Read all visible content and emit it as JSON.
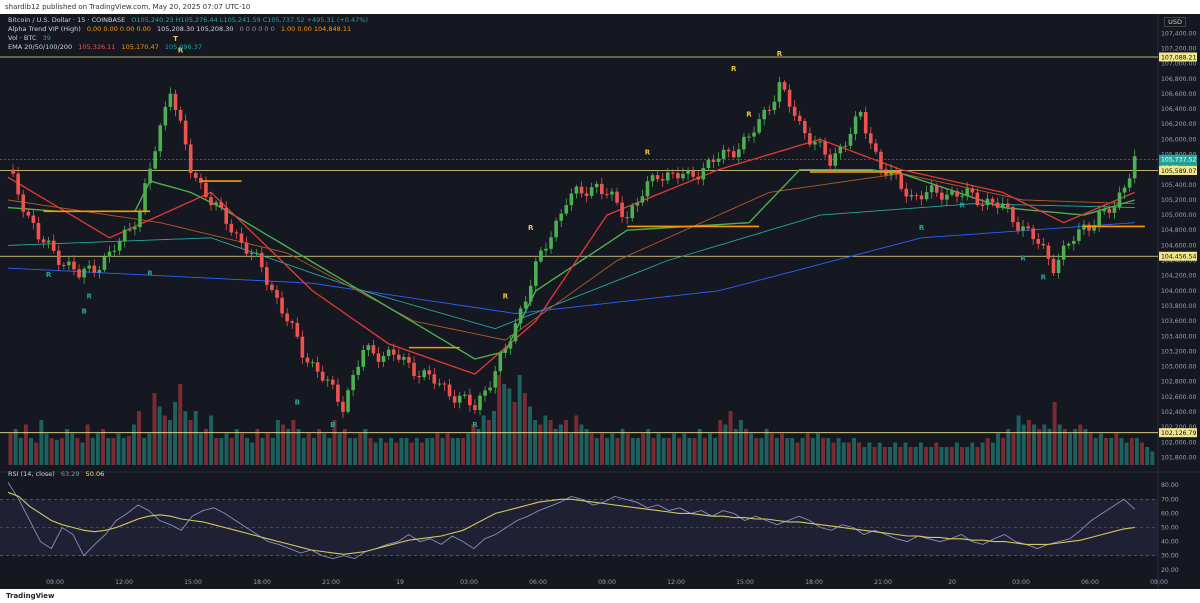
{
  "header": {
    "attribution": "shardib12 published on TradingView.com, May 20, 2025 07:07 UTC-10",
    "brand": "TradingView",
    "currency": "USD"
  },
  "legend": {
    "symbol": "Bitcoin / U.S. Dollar · 15 · COINBASE",
    "ohlc": "O105,240.23 H105,276.44 L105,241.59 C105,737.52 +495.31 (+0.47%)",
    "alpha_trend_name": "Alpha Trend VIP (High)",
    "alpha_trend_values_a": "0.00 0.00 0.00 0.00",
    "alpha_trend_values_b": "105,208.30 105,208.30",
    "alpha_trend_values_c": "0 0 0 0 0 0",
    "alpha_trend_values_d": "1.00 0.00 104,848.11",
    "vol_name": "Vol · BTC",
    "vol_value": "39",
    "ema_name": "EMA 20/50/100/200",
    "ema_v1": "105,326.11",
    "ema_v2": "105,170.47",
    "ema_v3": "105,096.37",
    "rsi_name": "RSI (14, close)",
    "rsi_v1": "63.29",
    "rsi_v2": "50.06"
  },
  "colors": {
    "up": "#26a69a",
    "up_candle": "#4caf50",
    "down": "#ef5350",
    "ema_fast": "#e53935",
    "ema_mid": "#b45a28",
    "ema_slow": "#26a69a",
    "ema_200": "#2962ff",
    "alpha_trend": "#4caf50",
    "level_line": "#f0e68c",
    "support_orange": "#ff9800",
    "rsi_line": "#8c8fbf",
    "rsi_ma": "#d4c95b",
    "background": "#151821"
  },
  "chart_data": [
    {
      "type": "candlestick",
      "title": "Bitcoin / U.S. Dollar · 15 · COINBASE",
      "x_ticks": [
        "09:00",
        "12:00",
        "15:00",
        "18:00",
        "21:00",
        "19",
        "03:00",
        "06:00",
        "09:00",
        "12:00",
        "15:00",
        "18:00",
        "21:00",
        "20",
        "03:00",
        "06:00",
        "09:00"
      ],
      "y_ticks": [
        "107,400.00",
        "107,200.00",
        "107,000.00",
        "106,800.00",
        "106,600.00",
        "106,400.00",
        "106,200.00",
        "106,000.00",
        "105,800.00",
        "105,600.00",
        "105,400.00",
        "105,200.00",
        "105,000.00",
        "104,800.00",
        "104,600.00",
        "104,400.00",
        "104,200.00",
        "104,000.00",
        "103,800.00",
        "103,600.00",
        "103,400.00",
        "103,200.00",
        "103,000.00",
        "102,800.00",
        "102,600.00",
        "102,400.00",
        "102,200.00",
        "102,000.00",
        "101,800.00"
      ],
      "ylim": [
        101700,
        107550
      ],
      "price_labels": [
        {
          "value": 107088.21,
          "text": "107,088.21",
          "color": "#f0e68c",
          "kind": "level"
        },
        {
          "value": 105737.52,
          "text": "105,737.52",
          "color": "#26a69a",
          "kind": "last"
        },
        {
          "value": 105589.07,
          "text": "105,589.07",
          "color": "#f0e68c",
          "kind": "level"
        },
        {
          "value": 104456.54,
          "text": "104,456.54",
          "color": "#f0e68c",
          "kind": "level"
        },
        {
          "value": 102126.79,
          "text": "102,126.79",
          "color": "#f0e68c",
          "kind": "level"
        }
      ],
      "last_timer": "02:33",
      "series_close": [
        {
          "t": 0,
          "close": 105600
        },
        {
          "t": 6,
          "close": 104700
        },
        {
          "t": 14,
          "close": 104200
        },
        {
          "t": 20,
          "close": 104450
        },
        {
          "t": 26,
          "close": 105050
        },
        {
          "t": 32,
          "close": 106700
        },
        {
          "t": 36,
          "close": 105600
        },
        {
          "t": 42,
          "close": 105000
        },
        {
          "t": 50,
          "close": 104300
        },
        {
          "t": 58,
          "close": 103200
        },
        {
          "t": 66,
          "close": 102500
        },
        {
          "t": 70,
          "close": 103200
        },
        {
          "t": 76,
          "close": 103150
        },
        {
          "t": 84,
          "close": 102800
        },
        {
          "t": 92,
          "close": 102450
        },
        {
          "t": 98,
          "close": 103200
        },
        {
          "t": 104,
          "close": 104300
        },
        {
          "t": 110,
          "close": 105200
        },
        {
          "t": 116,
          "close": 105400
        },
        {
          "t": 122,
          "close": 105000
        },
        {
          "t": 128,
          "close": 105550
        },
        {
          "t": 134,
          "close": 105500
        },
        {
          "t": 140,
          "close": 105750
        },
        {
          "t": 146,
          "close": 106000
        },
        {
          "t": 152,
          "close": 106700
        },
        {
          "t": 156,
          "close": 106200
        },
        {
          "t": 162,
          "close": 105700
        },
        {
          "t": 168,
          "close": 106300
        },
        {
          "t": 172,
          "close": 105650
        },
        {
          "t": 178,
          "close": 105250
        },
        {
          "t": 184,
          "close": 105300
        },
        {
          "t": 190,
          "close": 105250
        },
        {
          "t": 196,
          "close": 105100
        },
        {
          "t": 202,
          "close": 104700
        },
        {
          "t": 206,
          "close": 104350
        },
        {
          "t": 212,
          "close": 104850
        },
        {
          "t": 218,
          "close": 105100
        },
        {
          "t": 222,
          "close": 105737
        }
      ],
      "ema20": [
        {
          "t": 0,
          "v": 105500
        },
        {
          "t": 20,
          "v": 104700
        },
        {
          "t": 40,
          "v": 105300
        },
        {
          "t": 60,
          "v": 104000
        },
        {
          "t": 75,
          "v": 103300
        },
        {
          "t": 92,
          "v": 102900
        },
        {
          "t": 104,
          "v": 103600
        },
        {
          "t": 118,
          "v": 105000
        },
        {
          "t": 140,
          "v": 105600
        },
        {
          "t": 160,
          "v": 106000
        },
        {
          "t": 176,
          "v": 105600
        },
        {
          "t": 196,
          "v": 105300
        },
        {
          "t": 208,
          "v": 104900
        },
        {
          "t": 222,
          "v": 105300
        }
      ],
      "ema50": [
        {
          "t": 0,
          "v": 105200
        },
        {
          "t": 30,
          "v": 104900
        },
        {
          "t": 55,
          "v": 104500
        },
        {
          "t": 80,
          "v": 103600
        },
        {
          "t": 98,
          "v": 103350
        },
        {
          "t": 120,
          "v": 104400
        },
        {
          "t": 150,
          "v": 105300
        },
        {
          "t": 176,
          "v": 105550
        },
        {
          "t": 200,
          "v": 105200
        },
        {
          "t": 222,
          "v": 105150
        }
      ],
      "ema100": [
        {
          "t": 0,
          "v": 104600
        },
        {
          "t": 40,
          "v": 104700
        },
        {
          "t": 70,
          "v": 104000
        },
        {
          "t": 96,
          "v": 103500
        },
        {
          "t": 130,
          "v": 104400
        },
        {
          "t": 160,
          "v": 105000
        },
        {
          "t": 190,
          "v": 105150
        },
        {
          "t": 222,
          "v": 105100
        }
      ],
      "ema200": [
        {
          "t": 0,
          "v": 104300
        },
        {
          "t": 60,
          "v": 104100
        },
        {
          "t": 100,
          "v": 103700
        },
        {
          "t": 140,
          "v": 104000
        },
        {
          "t": 180,
          "v": 104700
        },
        {
          "t": 222,
          "v": 104900
        }
      ],
      "alpha_trend": [
        {
          "t": 0,
          "v": 105100
        },
        {
          "t": 10,
          "v": 105050
        },
        {
          "t": 25,
          "v": 105050
        },
        {
          "t": 28,
          "v": 105450
        },
        {
          "t": 36,
          "v": 105300
        },
        {
          "t": 42,
          "v": 105100
        },
        {
          "t": 92,
          "v": 103100
        },
        {
          "t": 98,
          "v": 103200
        },
        {
          "t": 104,
          "v": 104000
        },
        {
          "t": 122,
          "v": 104800
        },
        {
          "t": 146,
          "v": 104900
        },
        {
          "t": 156,
          "v": 105600
        },
        {
          "t": 170,
          "v": 105600
        },
        {
          "t": 176,
          "v": 105550
        },
        {
          "t": 196,
          "v": 105100
        },
        {
          "t": 212,
          "v": 105000
        },
        {
          "t": 222,
          "v": 105200
        }
      ],
      "orange_segments": [
        {
          "t0": 7,
          "t1": 28,
          "v": 105050
        },
        {
          "t0": 38,
          "t1": 46,
          "v": 105450
        },
        {
          "t0": 79,
          "t1": 89,
          "v": 103250
        },
        {
          "t0": 122,
          "t1": 148,
          "v": 104850
        },
        {
          "t0": 158,
          "t1": 176,
          "v": 105570
        },
        {
          "t0": 212,
          "t1": 224,
          "v": 104850
        }
      ],
      "signal_labels": [
        {
          "t": 8,
          "v": 104180,
          "text": "R",
          "color": "#26a69a"
        },
        {
          "t": 16,
          "v": 103900,
          "text": "R",
          "color": "#26a69a"
        },
        {
          "t": 15,
          "v": 103700,
          "text": "B",
          "color": "#26a69a"
        },
        {
          "t": 34,
          "v": 107150,
          "text": "R",
          "color": "#f0c43c"
        },
        {
          "t": 33,
          "v": 107300,
          "text": "T",
          "color": "#f0c43c"
        },
        {
          "t": 28,
          "v": 104200,
          "text": "R",
          "color": "#26a69a"
        },
        {
          "t": 57,
          "v": 102500,
          "text": "B",
          "color": "#26a69a"
        },
        {
          "t": 64,
          "v": 102200,
          "text": "B",
          "color": "#26a69a"
        },
        {
          "t": 92,
          "v": 102200,
          "text": "R",
          "color": "#26a69a"
        },
        {
          "t": 98,
          "v": 103900,
          "text": "R",
          "color": "#f0c43c"
        },
        {
          "t": 103,
          "v": 104800,
          "text": "R",
          "color": "#f0c43c"
        },
        {
          "t": 126,
          "v": 105800,
          "text": "R",
          "color": "#f0c43c"
        },
        {
          "t": 143,
          "v": 106900,
          "text": "R",
          "color": "#f0c43c"
        },
        {
          "t": 146,
          "v": 106300,
          "text": "R",
          "color": "#f0c43c"
        },
        {
          "t": 152,
          "v": 107100,
          "text": "R",
          "color": "#f0c43c"
        },
        {
          "t": 180,
          "v": 104800,
          "text": "R",
          "color": "#26a69a"
        },
        {
          "t": 188,
          "v": 105100,
          "text": "R",
          "color": "#26a69a"
        },
        {
          "t": 200,
          "v": 104400,
          "text": "R",
          "color": "#26a69a"
        },
        {
          "t": 204,
          "v": 104150,
          "text": "R",
          "color": "#26a69a"
        }
      ]
    },
    {
      "type": "bar",
      "title": "Vol · BTC",
      "note": "volume histogram at bottom of price pane, relative heights 0-1",
      "values": [
        0.35,
        0.4,
        0.3,
        0.45,
        0.3,
        0.25,
        0.5,
        0.35,
        0.3,
        0.28,
        0.3,
        0.4,
        0.35,
        0.3,
        0.25,
        0.45,
        0.3,
        0.35,
        0.4,
        0.3,
        0.3,
        0.35,
        0.3,
        0.32,
        0.45,
        0.6,
        0.3,
        0.35,
        0.8,
        0.65,
        0.55,
        0.5,
        0.7,
        0.9,
        0.6,
        0.5,
        0.6,
        0.35,
        0.4,
        0.55,
        0.3,
        0.3,
        0.35,
        0.3,
        0.4,
        0.35,
        0.3,
        0.25,
        0.4,
        0.3,
        0.35,
        0.3,
        0.5,
        0.45,
        0.4,
        0.5,
        0.4,
        0.3,
        0.35,
        0.3,
        0.4,
        0.35,
        0.3,
        0.5,
        0.35,
        0.4,
        0.3,
        0.3,
        0.35,
        0.4,
        0.3,
        0.25,
        0.3,
        0.25,
        0.3,
        0.25,
        0.3,
        0.3,
        0.25,
        0.3,
        0.25,
        0.3,
        0.3,
        0.35,
        0.3,
        0.35,
        0.3,
        0.3,
        0.3,
        0.35,
        0.45,
        0.4,
        0.55,
        0.5,
        0.6,
        1.0,
        0.9,
        0.85,
        0.7,
        1.0,
        0.8,
        0.65,
        0.5,
        0.45,
        0.55,
        0.5,
        0.4,
        0.45,
        0.5,
        0.35,
        0.55,
        0.45,
        0.4,
        0.35,
        0.3,
        0.35,
        0.3,
        0.35,
        0.3,
        0.4,
        0.35,
        0.3,
        0.3,
        0.35,
        0.4,
        0.3,
        0.35,
        0.3,
        0.3,
        0.35,
        0.3,
        0.35,
        0.3,
        0.3,
        0.4,
        0.3,
        0.35,
        0.3,
        0.5,
        0.45,
        0.6,
        0.4,
        0.5,
        0.4,
        0.35,
        0.3,
        0.3,
        0.4,
        0.35,
        0.3,
        0.35,
        0.3,
        0.3,
        0.25,
        0.3,
        0.35,
        0.3,
        0.35,
        0.3,
        0.3,
        0.25,
        0.3,
        0.25,
        0.25,
        0.3,
        0.25,
        0.2,
        0.25,
        0.2,
        0.25,
        0.2,
        0.2,
        0.25,
        0.2,
        0.25,
        0.2,
        0.2,
        0.25,
        0.2,
        0.2,
        0.25,
        0.2,
        0.2,
        0.2,
        0.25,
        0.2,
        0.2,
        0.25,
        0.2,
        0.25,
        0.3,
        0.25,
        0.35,
        0.3,
        0.4,
        0.35,
        0.55,
        0.45,
        0.5,
        0.45,
        0.4,
        0.45,
        0.4,
        0.7,
        0.45,
        0.4,
        0.35,
        0.4,
        0.45,
        0.4,
        0.35,
        0.3,
        0.35,
        0.3,
        0.3,
        0.35,
        0.3,
        0.25,
        0.3,
        0.3,
        0.25,
        0.2,
        0.15
      ]
    },
    {
      "type": "line",
      "title": "RSI (14, close)",
      "y_ticks": [
        "80.00",
        "70.00",
        "60.00",
        "50.00",
        "40.00",
        "30.00",
        "20.00"
      ],
      "ylim": [
        17,
        83
      ],
      "bands": [
        70,
        50,
        30
      ],
      "series": [
        {
          "name": "RSI",
          "values": [
            82,
            70,
            55,
            40,
            35,
            50,
            45,
            30,
            38,
            45,
            55,
            60,
            66,
            62,
            55,
            52,
            48,
            58,
            62,
            64,
            60,
            55,
            50,
            45,
            40,
            38,
            35,
            32,
            34,
            30,
            28,
            30,
            28,
            33,
            35,
            38,
            40,
            45,
            40,
            42,
            38,
            44,
            40,
            35,
            42,
            45,
            50,
            55,
            58,
            62,
            65,
            68,
            72,
            70,
            66,
            68,
            72,
            70,
            68,
            64,
            66,
            62,
            64,
            60,
            62,
            58,
            62,
            60,
            55,
            58,
            55,
            52,
            55,
            58,
            55,
            50,
            48,
            52,
            50,
            45,
            48,
            45,
            42,
            40,
            44,
            42,
            40,
            42,
            45,
            40,
            38,
            42,
            45,
            40,
            38,
            35,
            38,
            40,
            42,
            48,
            55,
            60,
            65,
            70,
            63
          ]
        },
        {
          "name": "RSI-MA",
          "values": [
            75,
            72,
            65,
            60,
            55,
            52,
            50,
            48,
            47,
            48,
            50,
            53,
            56,
            58,
            59,
            58,
            56,
            55,
            54,
            52,
            50,
            48,
            46,
            44,
            42,
            40,
            38,
            36,
            34,
            33,
            32,
            31,
            32,
            33,
            35,
            37,
            39,
            41,
            42,
            43,
            44,
            46,
            48,
            52,
            56,
            60,
            62,
            64,
            66,
            68,
            69,
            70,
            70,
            69,
            68,
            67,
            66,
            65,
            64,
            63,
            62,
            61,
            60,
            60,
            59,
            58,
            58,
            57,
            57,
            56,
            56,
            55,
            54,
            54,
            53,
            52,
            51,
            50,
            49,
            48,
            47,
            46,
            45,
            44,
            44,
            43,
            43,
            42,
            42,
            41,
            41,
            40,
            40,
            39,
            38,
            38,
            38,
            39,
            40,
            41,
            43,
            45,
            47,
            49,
            50
          ]
        }
      ]
    }
  ]
}
